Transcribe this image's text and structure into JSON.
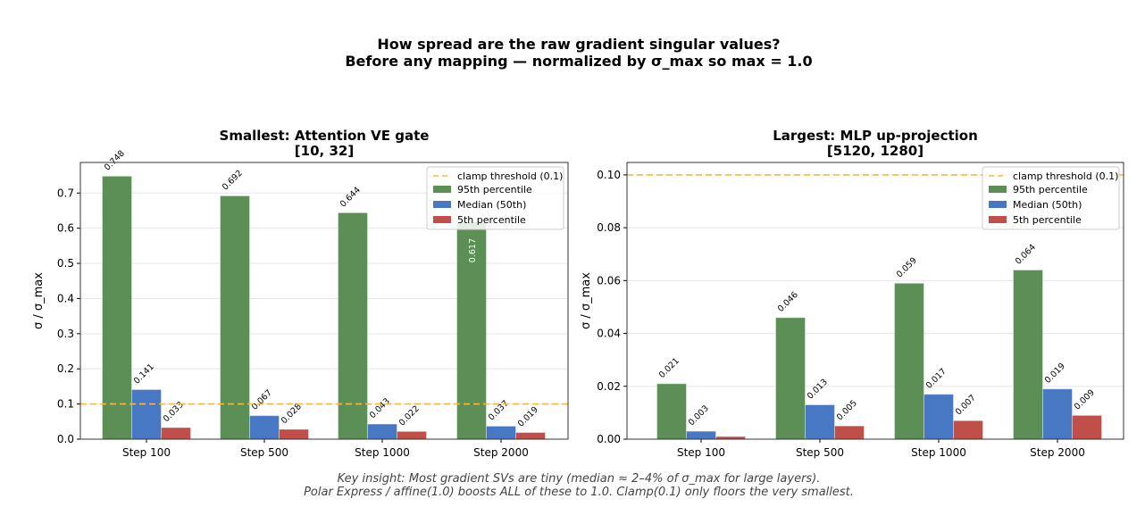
{
  "suptitle": [
    "How spread are the raw gradient singular values?",
    "Before any mapping — normalized by σ_max so max = 1.0"
  ],
  "footnote": [
    "Key insight: Most gradient SVs are tiny (median ≈ 2–4% of σ_max for large layers).",
    "Polar Express / affine(1.0) boosts ALL of these to 1.0. Clamp(0.1) only floors the very smallest."
  ],
  "colors": {
    "p95": "#5b8f55",
    "median": "#4877c4",
    "p5": "#bf4f48",
    "clamp": "#f5b942"
  },
  "chart_data": [
    {
      "type": "bar",
      "title": [
        "Smallest: Attention VE gate",
        "[10, 32]"
      ],
      "ylabel": "σ / σ_max",
      "categories": [
        "Step 100",
        "Step 500",
        "Step 1000",
        "Step 2000"
      ],
      "ylim": [
        0,
        0.787
      ],
      "yticks": [
        "0.0",
        "0.1",
        "0.2",
        "0.3",
        "0.4",
        "0.5",
        "0.6",
        "0.7"
      ],
      "grid": true,
      "legend": "top-right",
      "hline": {
        "name": "clamp threshold (0.1)",
        "value": 0.1
      },
      "series": [
        {
          "name": "95th percentile",
          "values": [
            0.748,
            0.692,
            0.644,
            0.617
          ],
          "labels": [
            "0.748",
            "0.692",
            "0.644",
            "0.617"
          ]
        },
        {
          "name": "Median (50th)",
          "values": [
            0.141,
            0.067,
            0.043,
            0.037
          ],
          "labels": [
            "0.141",
            "0.067",
            "0.043",
            "0.037"
          ]
        },
        {
          "name": "5th percentile",
          "values": [
            0.033,
            0.028,
            0.022,
            0.019
          ],
          "labels": [
            "0.033",
            "0.028",
            "0.022",
            "0.019"
          ]
        }
      ]
    },
    {
      "type": "bar",
      "title": [
        "Largest: MLP up-projection",
        "[5120, 1280]"
      ],
      "ylabel": "σ / σ_max",
      "categories": [
        "Step 100",
        "Step 500",
        "Step 1000",
        "Step 2000"
      ],
      "ylim": [
        0,
        0.1047
      ],
      "yticks": [
        "0.00",
        "0.02",
        "0.04",
        "0.06",
        "0.08",
        "0.10"
      ],
      "grid": true,
      "legend": "top-right",
      "hline": {
        "name": "clamp threshold (0.1)",
        "value": 0.1
      },
      "series": [
        {
          "name": "95th percentile",
          "values": [
            0.021,
            0.046,
            0.059,
            0.064
          ],
          "labels": [
            "0.021",
            "0.046",
            "0.059",
            "0.064"
          ]
        },
        {
          "name": "Median (50th)",
          "values": [
            0.003,
            0.013,
            0.017,
            0.019
          ],
          "labels": [
            "0.003",
            "0.013",
            "0.017",
            "0.019"
          ]
        },
        {
          "name": "5th percentile",
          "values": [
            0.001,
            0.005,
            0.007,
            0.009
          ],
          "labels": [
            "",
            "0.005",
            "0.007",
            "0.009"
          ]
        }
      ]
    }
  ]
}
